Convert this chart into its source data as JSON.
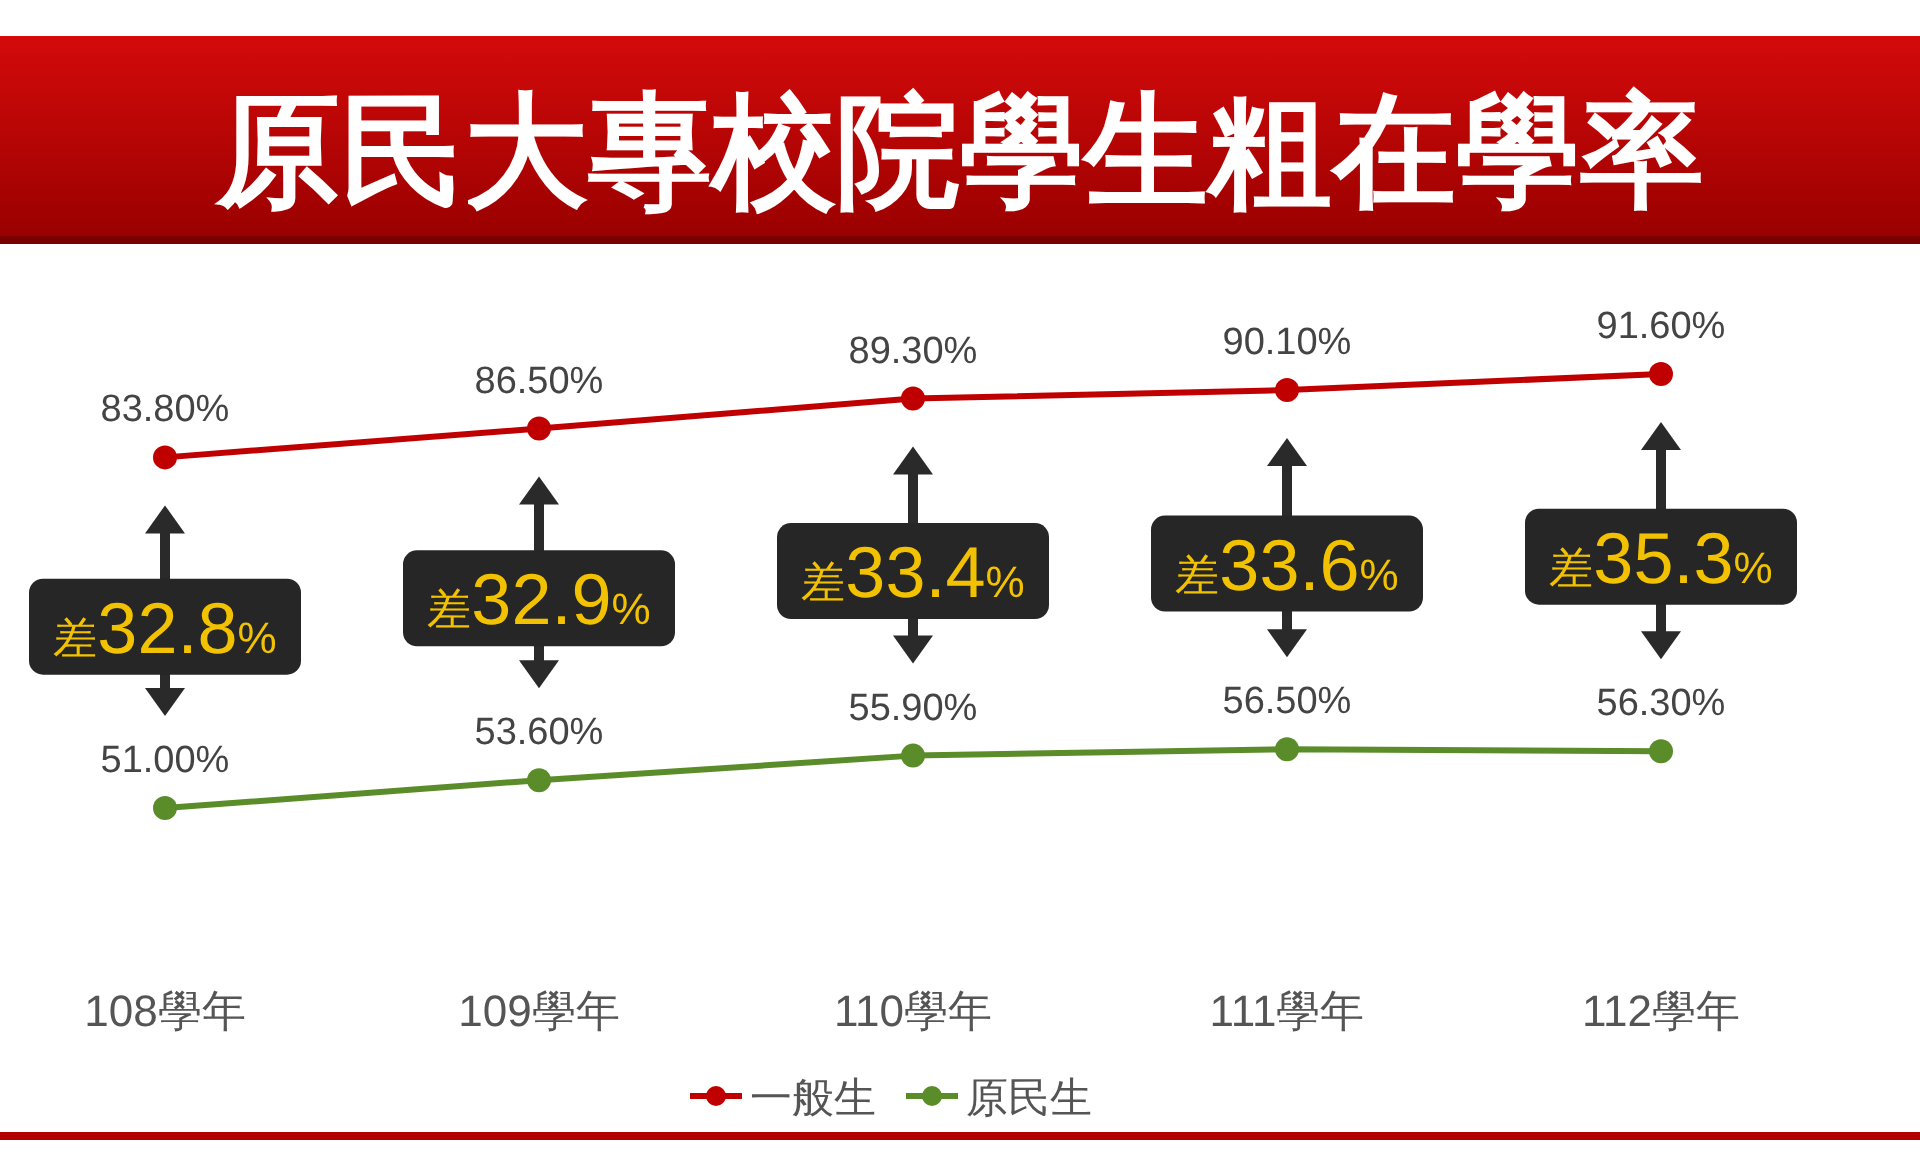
{
  "chart_data": {
    "type": "line",
    "title": "原民大專校院學生粗在學率",
    "categories": [
      "108學年",
      "109學年",
      "110學年",
      "111學年",
      "112學年"
    ],
    "series": [
      {
        "name": "一般生",
        "color": "#c00000",
        "values": [
          83.8,
          86.5,
          89.3,
          90.1,
          91.6
        ],
        "value_labels": [
          "83.80%",
          "86.50%",
          "89.30%",
          "90.10%",
          "91.60%"
        ]
      },
      {
        "name": "原民生",
        "color": "#5b8c2a",
        "values": [
          51.0,
          53.6,
          55.9,
          56.5,
          56.3
        ],
        "value_labels": [
          "51.00%",
          "53.60%",
          "55.90%",
          "56.50%",
          "56.30%"
        ]
      }
    ],
    "annotations": [
      "差32.8%",
      "差32.9%",
      "差33.4%",
      "差33.6%",
      "差35.3%"
    ],
    "marker": "circle",
    "line_style": "solid",
    "legend": "bottom"
  }
}
